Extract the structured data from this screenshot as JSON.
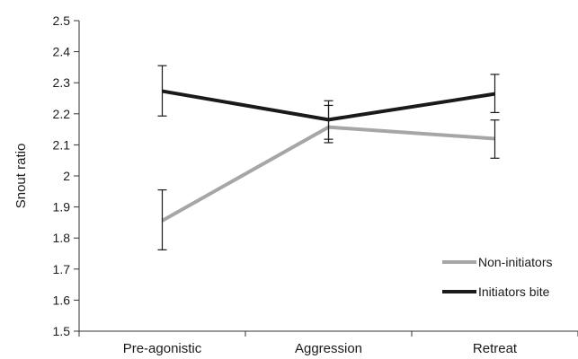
{
  "chart_data": {
    "type": "line",
    "categories": [
      "Pre-agonistic",
      "Aggression",
      "Retreat"
    ],
    "ylabel": "Snout ratio",
    "xlabel": "",
    "ylim": [
      1.5,
      2.5
    ],
    "yticks": [
      "1.5",
      "1.6",
      "1.7",
      "1.8",
      "1.9",
      "2",
      "2.1",
      "2.2",
      "2.3",
      "2.4",
      "2.5"
    ],
    "legend_position": "bottom-right",
    "grid": false,
    "series": [
      {
        "name": "Non-initiators",
        "color": "#a6a6a6",
        "values": [
          1.856,
          2.157,
          2.12
        ],
        "err_low": [
          1.762,
          2.107,
          2.057
        ],
        "err_high": [
          1.955,
          2.227,
          2.18
        ]
      },
      {
        "name": "Initiators bite",
        "color": "#1a1a1a",
        "values": [
          2.273,
          2.181,
          2.264
        ],
        "err_low": [
          2.193,
          2.118,
          2.204
        ],
        "err_high": [
          2.355,
          2.242,
          2.327
        ]
      }
    ]
  }
}
